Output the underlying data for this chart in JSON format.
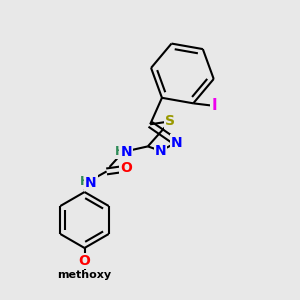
{
  "bg_color": "#e8e8e8",
  "bond_color": "#000000",
  "bond_width": 1.5,
  "atom_colors": {
    "S": "#999900",
    "N": "#0000ff",
    "O": "#ff0000",
    "I": "#ee00ee",
    "H": "#2e8b57",
    "C": "#000000"
  },
  "font_size": 10,
  "fig_size": [
    3.0,
    3.0
  ],
  "dpi": 100
}
